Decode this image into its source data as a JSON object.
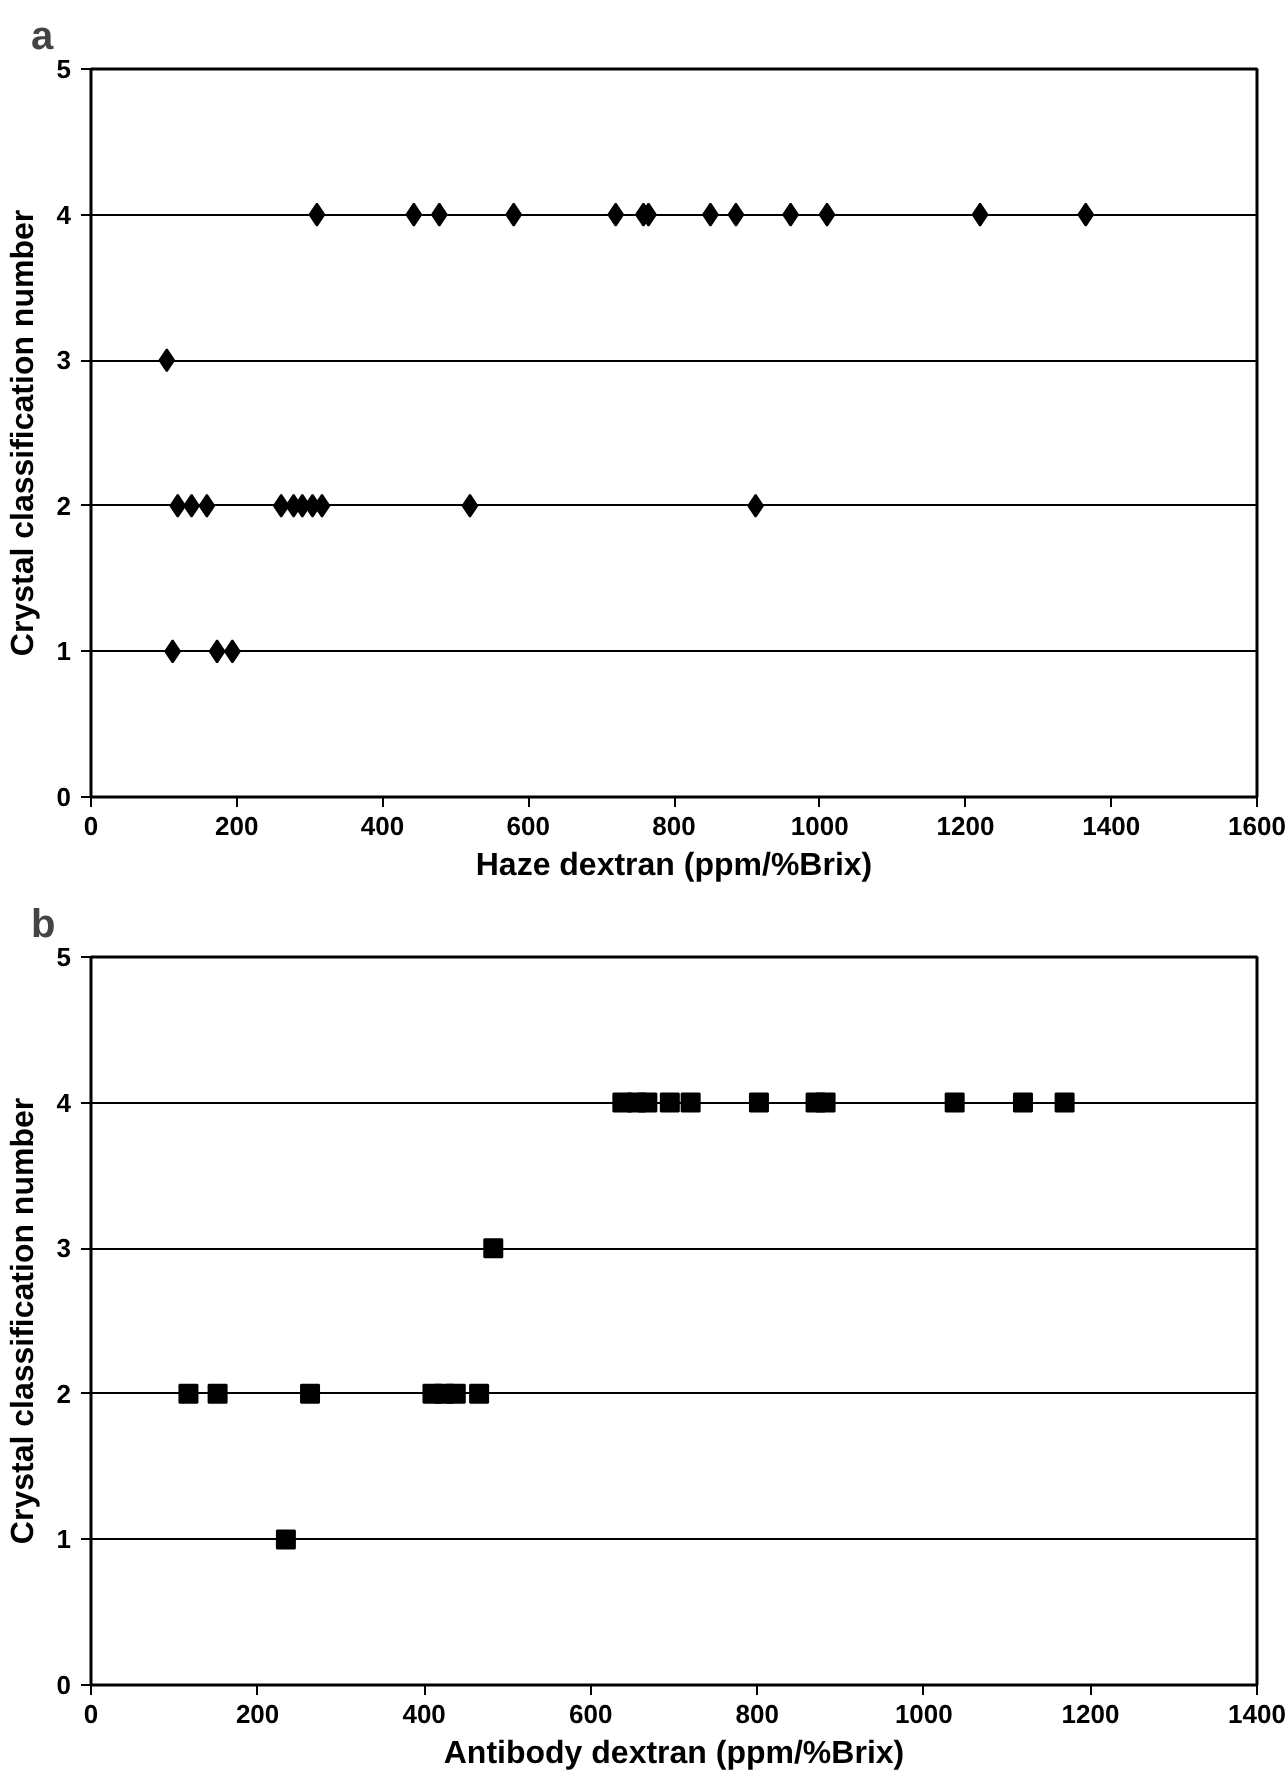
{
  "chart_data": [
    {
      "type": "scatter",
      "title": "a",
      "xlabel": "Haze dextran (ppm/%Brix)",
      "ylabel": "Crystal classification number",
      "marker": "diamond",
      "grid": "y",
      "xlim": [
        0,
        1600
      ],
      "xticks": [
        0,
        200,
        400,
        600,
        800,
        1000,
        1200,
        1400,
        1600
      ],
      "ylim": [
        0,
        5
      ],
      "yticks": [
        0,
        1,
        2,
        3,
        4,
        5
      ],
      "series": [
        {
          "color": "#000000",
          "x": [
            104,
            112,
            173,
            194,
            119,
            138,
            159,
            261,
            278,
            290,
            304,
            317,
            520,
            912,
            310,
            443,
            478,
            580,
            720,
            758,
            765,
            850,
            885,
            960,
            1010,
            1220,
            1365
          ],
          "values": [
            3,
            1,
            1,
            1,
            2,
            2,
            2,
            2,
            2,
            2,
            2,
            2,
            2,
            2,
            4,
            4,
            4,
            4,
            4,
            4,
            4,
            4,
            4,
            4,
            4,
            4,
            4
          ]
        }
      ]
    },
    {
      "type": "scatter",
      "title": "b",
      "xlabel": "Antibody dextran (ppm/%Brix)",
      "ylabel": "Crystal classification number",
      "marker": "square",
      "grid": "y",
      "xlim": [
        0,
        1400
      ],
      "xticks": [
        0,
        200,
        400,
        600,
        800,
        1000,
        1200,
        1400
      ],
      "ylim": [
        0,
        5
      ],
      "yticks": [
        0,
        1,
        2,
        3,
        4,
        5
      ],
      "series": [
        {
          "color": "#000000",
          "x": [
            234,
            117,
            152,
            263,
            410,
            424,
            438,
            466,
            483,
            638,
            655,
            668,
            695,
            720,
            802,
            870,
            882,
            1037,
            1119,
            1169
          ],
          "values": [
            1,
            2,
            2,
            2,
            2,
            2,
            2,
            2,
            3,
            4,
            4,
            4,
            4,
            4,
            4,
            4,
            4,
            4,
            4,
            4
          ]
        }
      ]
    }
  ]
}
